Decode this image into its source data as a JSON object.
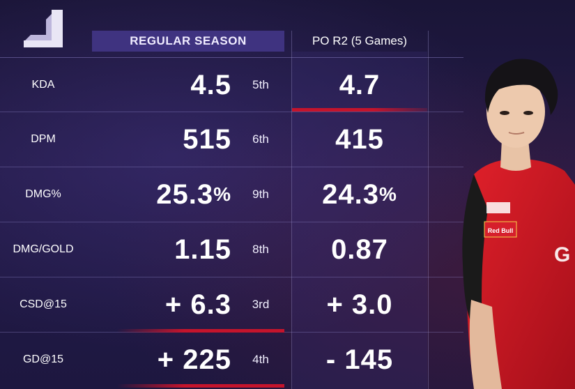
{
  "header": {
    "regular_season": "REGULAR SEASON",
    "playoffs": "PO R2 (5 Games)"
  },
  "colors": {
    "background": "#1d1740",
    "header_fill": "#3f3380",
    "accent_red": "#c5142c"
  },
  "stats": [
    {
      "label": "KDA",
      "regular": "4.5",
      "rank": "5th",
      "po": "4.7"
    },
    {
      "label": "DPM",
      "regular": "515",
      "rank": "6th",
      "po": "415"
    },
    {
      "label": "DMG%",
      "regular": "25.3",
      "regular_unit": "%",
      "rank": "9th",
      "po": "24.3",
      "po_unit": "%"
    },
    {
      "label": "DMG/GOLD",
      "regular": "1.15",
      "rank": "8th",
      "po": "0.87"
    },
    {
      "label": "CSD@15",
      "regular": "+ 6.3",
      "rank": "3rd",
      "po": "+ 3.0"
    },
    {
      "label": "GD@15",
      "regular": "+ 225",
      "rank": "4th",
      "po": "- 145"
    }
  ],
  "player": {
    "jersey_sponsor": "Red Bull",
    "jersey_text": "G"
  },
  "icons": {
    "logo": "league-logo-icon"
  }
}
